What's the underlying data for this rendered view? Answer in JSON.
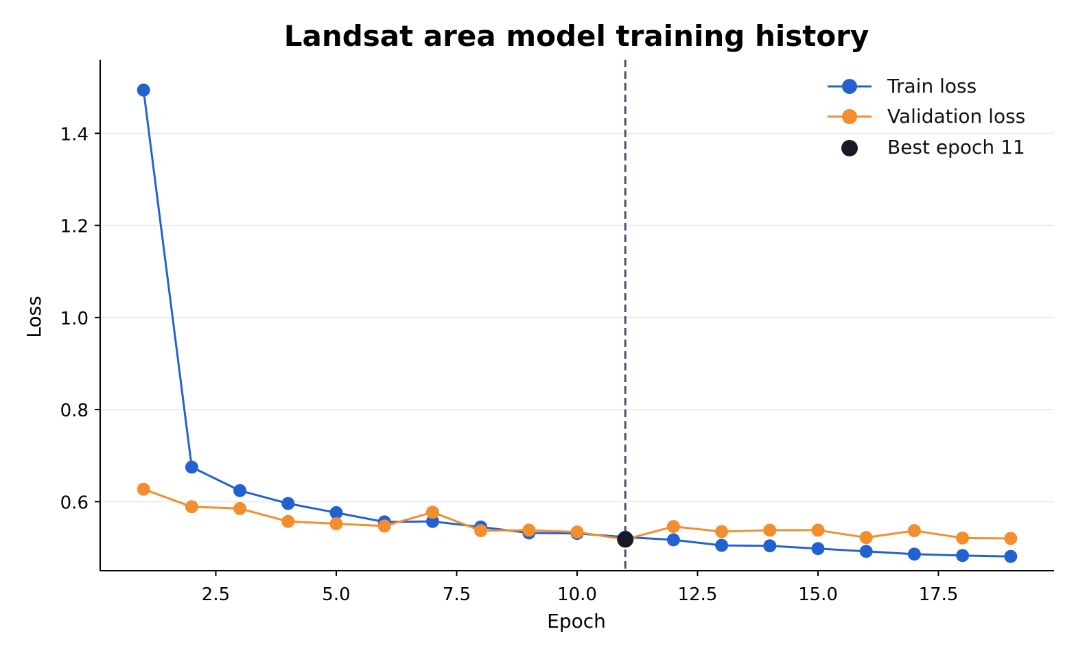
{
  "chart_data": {
    "type": "line",
    "title": "Landsat area model training history",
    "xlabel": "Epoch",
    "ylabel": "Loss",
    "xlim": [
      0.1,
      19.9
    ],
    "ylim": [
      0.45,
      1.56
    ],
    "xticks": [
      2.5,
      5.0,
      7.5,
      10.0,
      12.5,
      15.0,
      17.5
    ],
    "xtick_labels": [
      "2.5",
      "5.0",
      "7.5",
      "10.0",
      "12.5",
      "15.0",
      "17.5"
    ],
    "yticks": [
      0.6,
      0.8,
      1.0,
      1.2,
      1.4
    ],
    "ytick_labels": [
      "0.6",
      "0.8",
      "1.0",
      "1.2",
      "1.4"
    ],
    "grid": "horizontal",
    "legend_position": "top-right",
    "x": [
      1,
      2,
      3,
      4,
      5,
      6,
      7,
      8,
      9,
      10,
      11,
      12,
      13,
      14,
      15,
      16,
      17,
      18,
      19
    ],
    "series": [
      {
        "name": "Train loss",
        "color": "#2262d0",
        "values": [
          1.494,
          0.675,
          0.624,
          0.596,
          0.576,
          0.556,
          0.557,
          0.545,
          0.532,
          0.531,
          0.523,
          0.517,
          0.505,
          0.504,
          0.498,
          0.492,
          0.486,
          0.483,
          0.481
        ]
      },
      {
        "name": "Validation loss",
        "color": "#f28e2b",
        "values": [
          0.627,
          0.589,
          0.585,
          0.557,
          0.552,
          0.547,
          0.577,
          0.537,
          0.538,
          0.534,
          0.518,
          0.546,
          0.535,
          0.538,
          0.538,
          0.522,
          0.537,
          0.521,
          0.52
        ]
      }
    ],
    "best_epoch": {
      "label": "Best epoch 11",
      "x": 11,
      "y": 0.518,
      "color": "#151a26",
      "line_color": "#47526a"
    },
    "axis_color": "#000000",
    "grid_color": "#ebebeb"
  }
}
